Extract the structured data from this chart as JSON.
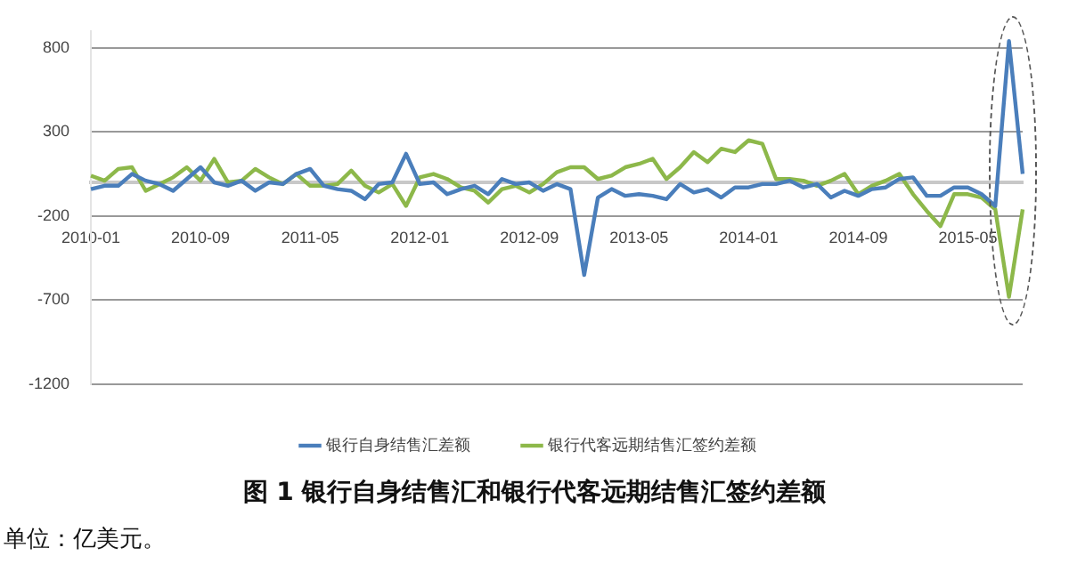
{
  "chart_data": {
    "type": "line",
    "title": "图 1 银行自身结售汇和银行代客远期结售汇签约差额",
    "categories": [
      "2010-01",
      null,
      null,
      null,
      null,
      null,
      null,
      null,
      "2010-09",
      null,
      null,
      null,
      null,
      null,
      null,
      null,
      "2011-05",
      null,
      null,
      null,
      null,
      null,
      null,
      null,
      "2012-01",
      null,
      null,
      null,
      null,
      null,
      null,
      null,
      "2012-09",
      null,
      null,
      null,
      null,
      null,
      null,
      null,
      "2013-05",
      null,
      null,
      null,
      null,
      null,
      null,
      null,
      "2014-01",
      null,
      null,
      null,
      null,
      null,
      null,
      null,
      "2014-09",
      null,
      null,
      null,
      null,
      null,
      null,
      null,
      "2015-05",
      null,
      null,
      null,
      null
    ],
    "series": [
      {
        "name": "银行自身结售汇差额",
        "color": "#4a7ebb",
        "values": [
          -40,
          -20,
          -20,
          50,
          10,
          -10,
          -50,
          20,
          90,
          0,
          -20,
          10,
          -50,
          0,
          -10,
          50,
          80,
          -20,
          -40,
          -50,
          -100,
          -10,
          0,
          170,
          -10,
          0,
          -70,
          -40,
          -20,
          -70,
          20,
          -10,
          0,
          -50,
          -10,
          -40,
          -550,
          -90,
          -40,
          -80,
          -70,
          -80,
          -100,
          -10,
          -60,
          -40,
          -90,
          -30,
          -30,
          -10,
          -10,
          10,
          -30,
          -10,
          -90,
          -50,
          -80,
          -40,
          -30,
          20,
          30,
          -80,
          -80,
          -30,
          -30,
          -70,
          -140,
          840,
          50
        ]
      },
      {
        "name": "银行代客远期结售汇签约差额",
        "color": "#8db84a",
        "values": [
          40,
          10,
          80,
          90,
          -50,
          -10,
          30,
          90,
          10,
          140,
          0,
          10,
          80,
          30,
          -10,
          50,
          -20,
          -20,
          -10,
          70,
          -20,
          -60,
          -10,
          -140,
          30,
          50,
          20,
          -30,
          -50,
          -120,
          -40,
          -20,
          -60,
          -10,
          60,
          90,
          90,
          20,
          40,
          90,
          110,
          140,
          20,
          90,
          180,
          120,
          200,
          180,
          250,
          230,
          20,
          20,
          10,
          -20,
          10,
          50,
          -70,
          -20,
          10,
          50,
          -70,
          -170,
          -260,
          -70,
          -70,
          -90,
          -160,
          -680,
          -160
        ]
      }
    ],
    "ylim": [
      -1200,
      900
    ],
    "yticks": [
      -1200,
      -700,
      -200,
      300,
      800
    ],
    "grid": "y",
    "legend": "bottom",
    "marker": "none",
    "line_style": "solid",
    "annotations": [
      "单位：亿美元。"
    ]
  }
}
